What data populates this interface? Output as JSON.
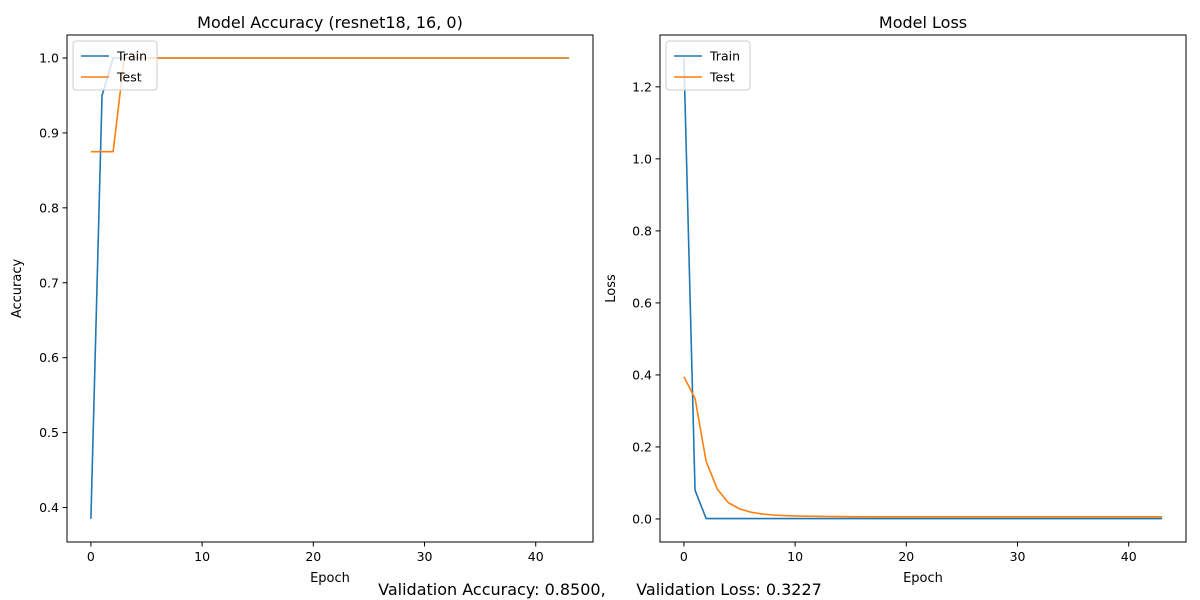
{
  "chart_data": [
    {
      "type": "line",
      "title": "Model Accuracy (resnet18, 16, 0)",
      "xlabel": "Epoch",
      "ylabel": "Accuracy",
      "xlim": [
        -2.15,
        45.15
      ],
      "ylim": [
        0.354,
        1.0307
      ],
      "xticks": [
        0,
        10,
        20,
        30,
        40
      ],
      "yticks": [
        0.4,
        0.5,
        0.6,
        0.7,
        0.8,
        0.9,
        1.0
      ],
      "ytick_labels": [
        "0.4",
        "0.5",
        "0.6",
        "0.7",
        "0.8",
        "0.9",
        "1.0"
      ],
      "grid": false,
      "legend": "upper left",
      "series": [
        {
          "name": "Train",
          "color": "#1f77b4",
          "x": [
            0,
            1,
            2,
            3,
            4,
            5,
            6,
            7,
            8,
            9,
            10,
            11,
            12,
            13,
            14,
            15,
            16,
            17,
            18,
            19,
            20,
            21,
            22,
            23,
            24,
            25,
            26,
            27,
            28,
            29,
            30,
            31,
            32,
            33,
            34,
            35,
            36,
            37,
            38,
            39,
            40,
            41,
            42,
            43
          ],
          "values": [
            0.385,
            0.95,
            1.0,
            1.0,
            1.0,
            1.0,
            1.0,
            1.0,
            1.0,
            1.0,
            1.0,
            1.0,
            1.0,
            1.0,
            1.0,
            1.0,
            1.0,
            1.0,
            1.0,
            1.0,
            1.0,
            1.0,
            1.0,
            1.0,
            1.0,
            1.0,
            1.0,
            1.0,
            1.0,
            1.0,
            1.0,
            1.0,
            1.0,
            1.0,
            1.0,
            1.0,
            1.0,
            1.0,
            1.0,
            1.0,
            1.0,
            1.0,
            1.0,
            1.0
          ]
        },
        {
          "name": "Test",
          "color": "#ff7f0e",
          "x": [
            0,
            1,
            2,
            3,
            4,
            5,
            6,
            7,
            8,
            9,
            10,
            11,
            12,
            13,
            14,
            15,
            16,
            17,
            18,
            19,
            20,
            21,
            22,
            23,
            24,
            25,
            26,
            27,
            28,
            29,
            30,
            31,
            32,
            33,
            34,
            35,
            36,
            37,
            38,
            39,
            40,
            41,
            42,
            43
          ],
          "values": [
            0.875,
            0.875,
            0.875,
            1.0,
            1.0,
            1.0,
            1.0,
            1.0,
            1.0,
            1.0,
            1.0,
            1.0,
            1.0,
            1.0,
            1.0,
            1.0,
            1.0,
            1.0,
            1.0,
            1.0,
            1.0,
            1.0,
            1.0,
            1.0,
            1.0,
            1.0,
            1.0,
            1.0,
            1.0,
            1.0,
            1.0,
            1.0,
            1.0,
            1.0,
            1.0,
            1.0,
            1.0,
            1.0,
            1.0,
            1.0,
            1.0,
            1.0,
            1.0,
            1.0
          ]
        }
      ]
    },
    {
      "type": "line",
      "title": "Model Loss",
      "xlabel": "Epoch",
      "ylabel": "Loss",
      "xlim": [
        -2.15,
        45.15
      ],
      "ylim": [
        -0.064,
        1.344
      ],
      "xticks": [
        0,
        10,
        20,
        30,
        40
      ],
      "yticks": [
        0.0,
        0.2,
        0.4,
        0.6,
        0.8,
        1.0,
        1.2
      ],
      "ytick_labels": [
        "0.0",
        "0.2",
        "0.4",
        "0.6",
        "0.8",
        "1.0",
        "1.2"
      ],
      "grid": false,
      "legend": "upper left",
      "series": [
        {
          "name": "Train",
          "color": "#1f77b4",
          "x": [
            0,
            1,
            2,
            3,
            4,
            5,
            6,
            7,
            8,
            9,
            10,
            11,
            12,
            13,
            14,
            15,
            16,
            17,
            18,
            19,
            20,
            21,
            22,
            23,
            24,
            25,
            26,
            27,
            28,
            29,
            30,
            31,
            32,
            33,
            34,
            35,
            36,
            37,
            38,
            39,
            40,
            41,
            42,
            43
          ],
          "values": [
            1.28,
            0.08,
            0.001,
            0.001,
            0.001,
            0.001,
            0.001,
            0.001,
            0.001,
            0.001,
            0.001,
            0.001,
            0.001,
            0.001,
            0.001,
            0.001,
            0.001,
            0.001,
            0.001,
            0.001,
            0.001,
            0.001,
            0.001,
            0.001,
            0.001,
            0.001,
            0.001,
            0.001,
            0.001,
            0.001,
            0.001,
            0.001,
            0.001,
            0.001,
            0.001,
            0.001,
            0.001,
            0.001,
            0.001,
            0.001,
            0.001,
            0.001,
            0.001,
            0.001
          ]
        },
        {
          "name": "Test",
          "color": "#ff7f0e",
          "x": [
            0,
            1,
            2,
            3,
            4,
            5,
            6,
            7,
            8,
            9,
            10,
            11,
            12,
            13,
            14,
            15,
            16,
            17,
            18,
            19,
            20,
            21,
            22,
            23,
            24,
            25,
            26,
            27,
            28,
            29,
            30,
            31,
            32,
            33,
            34,
            35,
            36,
            37,
            38,
            39,
            40,
            41,
            42,
            43
          ],
          "values": [
            0.395,
            0.335,
            0.16,
            0.083,
            0.045,
            0.028,
            0.019,
            0.014,
            0.011,
            0.0095,
            0.0085,
            0.0078,
            0.0072,
            0.0068,
            0.0065,
            0.0063,
            0.0061,
            0.006,
            0.006,
            0.006,
            0.006,
            0.006,
            0.006,
            0.006,
            0.006,
            0.006,
            0.006,
            0.006,
            0.006,
            0.006,
            0.006,
            0.006,
            0.006,
            0.006,
            0.006,
            0.006,
            0.006,
            0.006,
            0.006,
            0.006,
            0.006,
            0.006,
            0.006,
            0.006
          ]
        }
      ]
    }
  ],
  "footer": {
    "accuracy_text": "Validation Accuracy: 0.8500,",
    "loss_text": "Validation Loss: 0.3227"
  }
}
